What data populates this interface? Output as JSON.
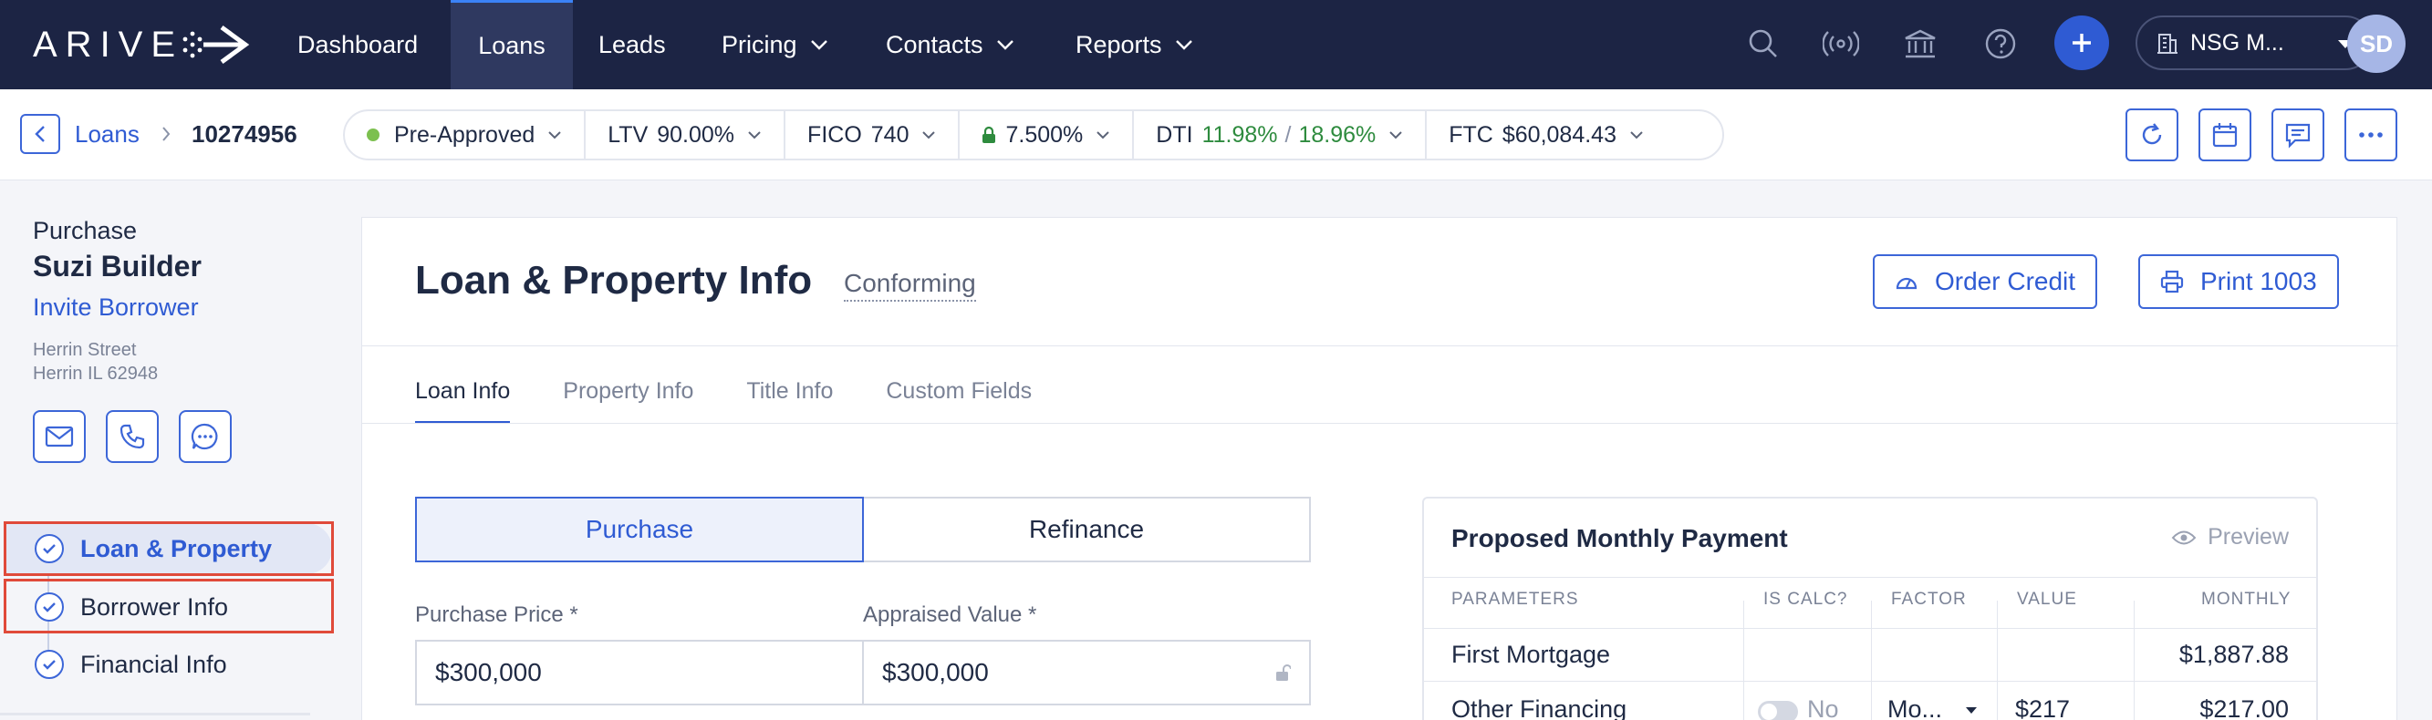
{
  "nav": {
    "logo": "ARIVE",
    "items": [
      {
        "label": "Dashboard"
      },
      {
        "label": "Loans"
      },
      {
        "label": "Leads"
      },
      {
        "label": "Pricing"
      },
      {
        "label": "Contacts"
      },
      {
        "label": "Reports"
      }
    ],
    "org_name": "NSG M...",
    "avatar_initials": "SD",
    "accent": "#2f5bd3",
    "bg": "#1c2444"
  },
  "breadcrumb": {
    "link": "Loans",
    "loan_id": "10274956"
  },
  "status": {
    "stage": "Pre-Approved",
    "ltv_label": "LTV",
    "ltv_value": "90.00%",
    "fico_label": "FICO",
    "fico_value": "740",
    "rate": "7.500%",
    "dti_label": "DTI",
    "dti_front": "11.98%",
    "dti_sep": "/",
    "dti_back": "18.96%",
    "ftc_label": "FTC",
    "ftc_value": "$60,084.43"
  },
  "sidebar": {
    "loan_type": "Purchase",
    "borrower_name": "Suzi Builder",
    "invite_label": "Invite Borrower",
    "address_line1": "Herrin Street",
    "address_line2": "Herrin IL 62948",
    "steps": [
      {
        "label": "Loan & Property"
      },
      {
        "label": "Borrower Info"
      },
      {
        "label": "Financial Info"
      }
    ]
  },
  "main": {
    "title": "Loan & Property Info",
    "subtitle": "Conforming",
    "order_credit": "Order Credit",
    "print": "Print 1003",
    "tabs": [
      {
        "label": "Loan Info"
      },
      {
        "label": "Property Info"
      },
      {
        "label": "Title Info"
      },
      {
        "label": "Custom Fields"
      }
    ],
    "toggle": {
      "purchase": "Purchase",
      "refinance": "Refinance"
    },
    "purchase_price_label": "Purchase Price *",
    "purchase_price_value": "$300,000",
    "appraised_value_label": "Appraised Value *",
    "appraised_value_value": "$300,000"
  },
  "payment": {
    "title": "Proposed Monthly Payment",
    "preview": "Preview",
    "columns": {
      "parameters": "PARAMETERS",
      "is_calc": "IS CALC?",
      "factor": "FACTOR",
      "value": "VALUE",
      "monthly": "MONTHLY"
    },
    "rows": [
      {
        "label": "First Mortgage",
        "monthly": "$1,887.88"
      },
      {
        "label": "Other Financing",
        "is_calc": "No",
        "factor": "Mo...",
        "value": "$217",
        "monthly": "$217.00"
      }
    ]
  }
}
